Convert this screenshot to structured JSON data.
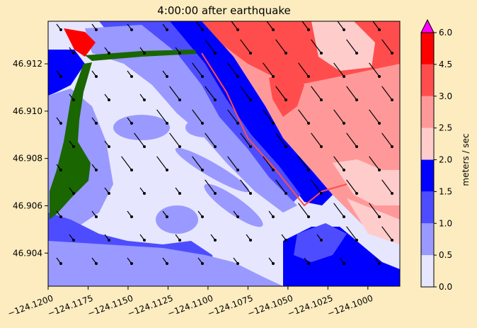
{
  "figure": {
    "background_color": "#fdecc0",
    "title": "4:00:00 after earthquake"
  },
  "chart_data": {
    "type": "heatmap",
    "title": "4:00:00 after earthquake",
    "xlim": [
      -124.12,
      -124.098
    ],
    "ylim": [
      46.9026,
      46.9138
    ],
    "x_ticks": [
      "−124.1200",
      "−124.1175",
      "−124.1150",
      "−124.1125",
      "−124.1100",
      "−124.1075",
      "−124.1050",
      "−124.1025",
      "−124.1000"
    ],
    "x_tick_values": [
      -124.12,
      -124.1175,
      -124.115,
      -124.1125,
      -124.11,
      -124.1075,
      -124.105,
      -124.1025,
      -124.1
    ],
    "y_ticks": [
      "46.904",
      "46.906",
      "46.908",
      "46.910",
      "46.912"
    ],
    "y_tick_values": [
      46.904,
      46.906,
      46.908,
      46.91,
      46.912
    ],
    "colorbar": {
      "label": "meters / sec",
      "ticks": [
        "0.0",
        "0.5",
        "1.0",
        "1.5",
        "2.0",
        "2.5",
        "3.0",
        "4.5",
        "6.0"
      ],
      "levels": [
        0.0,
        0.5,
        1.0,
        1.5,
        2.0,
        2.5,
        3.0,
        4.5,
        6.0
      ],
      "colors": [
        "#e6e6ff",
        "#9999ff",
        "#4d4dff",
        "#0000ff",
        "#ffcccc",
        "#ff9999",
        "#ff4d4d",
        "#ff0000"
      ],
      "extend_color": "#ff00ff"
    },
    "land_color": "#1a6600",
    "arrow_color": "#000000"
  }
}
